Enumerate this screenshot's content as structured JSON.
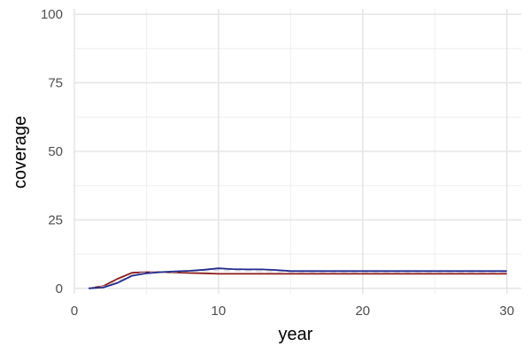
{
  "chart_data": {
    "type": "line",
    "title": "",
    "xlabel": "year",
    "ylabel": "coverage",
    "xlim": [
      0,
      31
    ],
    "ylim": [
      -2,
      102
    ],
    "x_ticks": [
      0,
      10,
      20,
      30
    ],
    "y_ticks": [
      0,
      25,
      50,
      75,
      100
    ],
    "x_tick_labels": [
      "0",
      "10",
      "20",
      "30"
    ],
    "y_tick_labels": [
      "0",
      "25",
      "50",
      "75",
      "100"
    ],
    "grid": true,
    "legend": "none",
    "series": [
      {
        "color": "#8b1a1a",
        "dash": "solid",
        "x": [
          1,
          2,
          3,
          4,
          5,
          6,
          7,
          8,
          9,
          10,
          11,
          12,
          13,
          14,
          15,
          16,
          17,
          18,
          19,
          20,
          21,
          22,
          23,
          24,
          25,
          26,
          27,
          28,
          29,
          30
        ],
        "y": [
          0,
          0.8,
          3.5,
          5.7,
          5.9,
          5.9,
          5.8,
          5.6,
          5.5,
          5.3,
          5.3,
          5.3,
          5.3,
          5.3,
          5.3,
          5.3,
          5.3,
          5.3,
          5.3,
          5.3,
          5.3,
          5.3,
          5.3,
          5.3,
          5.3,
          5.3,
          5.3,
          5.3,
          5.3,
          5.3
        ]
      },
      {
        "color": "#e0e0e0",
        "dash": "dashed",
        "x": [
          1,
          2,
          3,
          4,
          5,
          6,
          7,
          8,
          9,
          10,
          11,
          12,
          13,
          14,
          15,
          16,
          17,
          18,
          19,
          20,
          21,
          22,
          23,
          24,
          25,
          26,
          27,
          28,
          29,
          30
        ],
        "y": [
          0,
          0.5,
          2.5,
          5.0,
          5.7,
          5.9,
          6.1,
          6.3,
          6.4,
          6.5,
          6.5,
          6.4,
          6.2,
          6.1,
          6.0,
          6.0,
          6.0,
          6.0,
          6.0,
          6.0,
          6.0,
          6.0,
          6.0,
          6.0,
          6.0,
          6.0,
          6.0,
          6.0,
          6.0,
          6.0
        ]
      },
      {
        "color": "#1f2a8c",
        "dash": "solid",
        "x": [
          1,
          2,
          3,
          4,
          5,
          6,
          7,
          8,
          9,
          10,
          11,
          12,
          13,
          14,
          15,
          16,
          17,
          18,
          19,
          20,
          21,
          22,
          23,
          24,
          25,
          26,
          27,
          28,
          29,
          30
        ],
        "y": [
          0,
          0.3,
          2.0,
          4.6,
          5.5,
          5.9,
          6.2,
          6.4,
          6.8,
          7.3,
          7.0,
          6.9,
          6.9,
          6.7,
          6.3,
          6.3,
          6.3,
          6.3,
          6.3,
          6.3,
          6.3,
          6.3,
          6.3,
          6.3,
          6.3,
          6.3,
          6.3,
          6.3,
          6.3,
          6.3
        ]
      }
    ]
  }
}
